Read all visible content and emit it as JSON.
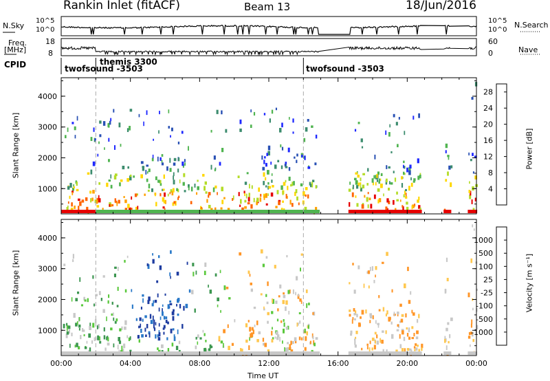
{
  "header": {
    "station": "Rankin Inlet (fitACF)",
    "beam": "Beam 13",
    "date": "18/Jun/2016"
  },
  "top_panels": {
    "nsky_label": "N.Sky",
    "nsky_ticks": [
      "10^5",
      "10^0"
    ],
    "nsearch_label": "N.Search",
    "nsearch_ticks": [
      "10^5",
      "10^0"
    ],
    "freq_label": "Freq.",
    "freq_unit": "[MHz]",
    "freq_ticks": [
      "18",
      "8"
    ],
    "nave_label": "Nave",
    "nave_ticks": [
      "60",
      "0"
    ],
    "cpid_label": "CPID",
    "cpid_segments": [
      {
        "name": "twofsound -3503",
        "start_hour": 0.0
      },
      {
        "name": "themis 3300",
        "start_hour": 2.0
      },
      {
        "name": "twofsound -3503",
        "start_hour": 14.0
      }
    ]
  },
  "chart_data": [
    {
      "type": "heatmap",
      "name": "power",
      "xlabel": "",
      "ylabel": "Slant Range [km]",
      "xlim": [
        0,
        24
      ],
      "ylim": [
        180,
        4600
      ],
      "y_ticks": [
        "1000",
        "2000",
        "3000",
        "4000"
      ],
      "colorbar_label": "Power [dB]",
      "colorbar_ticks": [
        "4",
        "8",
        "12",
        "16",
        "20",
        "24",
        "28"
      ],
      "colorbar_range": [
        0,
        30
      ],
      "colors": [
        "#1e28ff",
        "#2850b4",
        "#3c8c6e",
        "#50b450",
        "#b4dc28",
        "#ffd700",
        "#ffa000",
        "#ff6400",
        "#e60000"
      ]
    },
    {
      "type": "heatmap",
      "name": "velocity",
      "xlabel": "Time UT",
      "ylabel": "Slant Range [km]",
      "xlim": [
        0,
        24
      ],
      "ylim": [
        180,
        4600
      ],
      "x_ticks": [
        "00:00",
        "04:00",
        "08:00",
        "12:00",
        "16:00",
        "20:00",
        "00:00"
      ],
      "y_ticks": [
        "1000",
        "2000",
        "3000",
        "4000"
      ],
      "colorbar_label": "Velocity [m s⁻¹]",
      "colorbar_ticks": [
        "1000",
        "500",
        "100",
        "25",
        "-25",
        "-100",
        "-500",
        "-1000"
      ],
      "colors": [
        "#1e3ca0",
        "#2878c8",
        "#3c9650",
        "#5ac83c",
        "#c8c8c8",
        "#ffc850",
        "#ff9628",
        "#f06414",
        "#e60000"
      ]
    }
  ]
}
